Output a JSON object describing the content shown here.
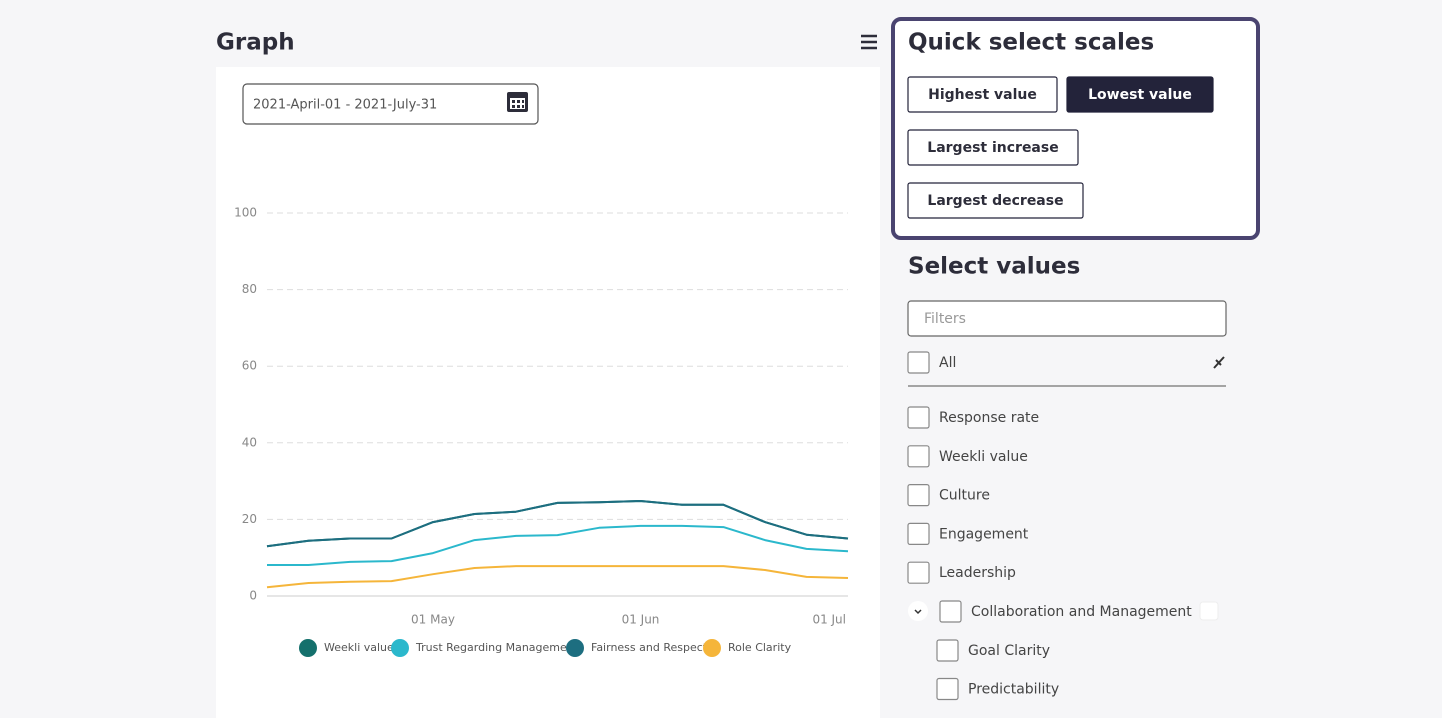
{
  "header": {
    "title": "Graph"
  },
  "date_range": "2021-April-01  -  2021-July-31",
  "chart_data": {
    "type": "line",
    "categories": [
      null,
      null,
      null,
      null,
      "01 May",
      null,
      null,
      null,
      null,
      "01 Jun",
      null,
      null,
      null,
      null,
      "01 Jul"
    ],
    "series": [
      {
        "name": "Weekli value",
        "color": "#14706c",
        "values": [
          13.0,
          14.4,
          15.0,
          15.0,
          19.3,
          21.4,
          22.0,
          24.3,
          24.5,
          24.8,
          23.8,
          23.8,
          19.3,
          16.0,
          15.0
        ]
      },
      {
        "name": "Trust Regarding Management",
        "color": "#2bb8cc",
        "values": [
          8.1,
          8.1,
          8.9,
          9.1,
          11.2,
          14.6,
          15.7,
          15.9,
          17.8,
          18.3,
          18.3,
          18.0,
          14.6,
          12.3,
          11.7
        ]
      },
      {
        "name": "Fairness and Respect",
        "color": "#1d6e80",
        "values": [
          13.0,
          14.4,
          15.0,
          15.0,
          19.3,
          21.4,
          22.0,
          24.3,
          24.5,
          24.8,
          23.8,
          23.8,
          19.3,
          16.0,
          15.0
        ]
      },
      {
        "name": "Role Clarity",
        "color": "#f5b53a",
        "values": [
          2.3,
          3.4,
          3.7,
          3.9,
          5.7,
          7.3,
          7.8,
          7.8,
          7.8,
          7.8,
          7.8,
          7.8,
          6.8,
          5.0,
          4.7
        ]
      }
    ],
    "ylim": [
      0,
      100
    ],
    "yticks": [
      0,
      20,
      40,
      60,
      80,
      100
    ],
    "grid": true
  },
  "quick_select": {
    "title": "Quick select scales",
    "buttons": [
      {
        "label": "Highest value",
        "selected": false
      },
      {
        "label": "Lowest value",
        "selected": true
      },
      {
        "label": "Largest increase",
        "selected": false
      },
      {
        "label": "Largest decrease",
        "selected": false
      }
    ]
  },
  "select_values": {
    "title": "Select values",
    "filter_placeholder": "Filters",
    "all_label": "All",
    "items": [
      "Response rate",
      "Weekli value",
      "Culture",
      "Engagement",
      "Leadership"
    ],
    "group": {
      "label": "Collaboration and Management",
      "children": [
        "Goal Clarity",
        "Predictability"
      ]
    }
  }
}
